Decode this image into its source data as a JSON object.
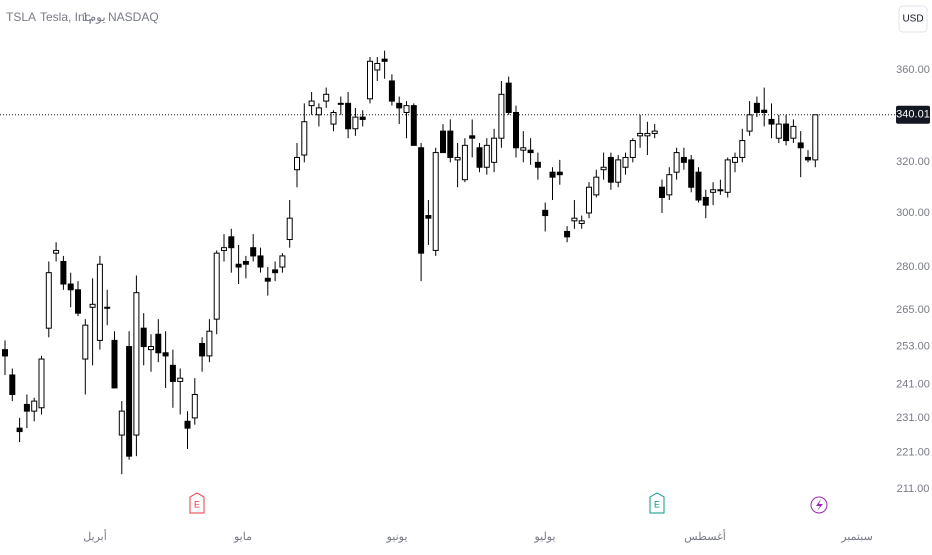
{
  "chart_data": {
    "type": "candlestick",
    "symbol": "TSLA",
    "name": "Tesla, Inc.",
    "interval": "1يوم",
    "exchange": "NASDAQ",
    "currency": "USD",
    "last_price": 340.01,
    "log_scale": true,
    "up_color": "#ffffff",
    "down_color": "#000000",
    "ylim": [
      205.4,
      393.6
    ],
    "yticks": [
      {
        "value": 360,
        "label": "360.00"
      },
      {
        "value": 320,
        "label": "320.00"
      },
      {
        "value": 300,
        "label": "300.00"
      },
      {
        "value": 280,
        "label": "280.00"
      },
      {
        "value": 265,
        "label": "265.00"
      },
      {
        "value": 253,
        "label": "253.00"
      },
      {
        "value": 241,
        "label": "241.00"
      },
      {
        "value": 231,
        "label": "231.00"
      },
      {
        "value": 221,
        "label": "221.00"
      },
      {
        "value": 211,
        "label": "211.00"
      }
    ],
    "x_labels": [
      "أبريل",
      "مايو",
      "يونيو",
      "يوليو",
      "أغسطس",
      "سبتمبر"
    ],
    "event_labels": [
      "E",
      "E"
    ],
    "open": [
      252,
      244,
      228,
      235,
      233,
      234,
      259,
      285,
      282,
      274,
      272,
      249,
      266,
      255,
      266,
      255,
      226,
      253,
      226,
      259,
      252,
      257,
      251,
      247,
      242,
      230,
      231,
      254,
      250,
      262,
      286,
      291,
      281,
      282,
      287,
      284,
      276,
      279,
      280,
      290,
      317,
      323,
      344,
      340,
      346,
      336,
      345,
      345,
      334,
      339,
      347,
      360,
      365,
      355,
      345,
      341,
      344,
      326,
      299,
      286,
      333,
      333,
      321,
      313,
      331,
      326,
      318,
      320,
      330,
      354,
      341,
      325,
      325,
      320,
      301,
      316,
      316,
      293,
      297,
      296,
      300,
      307,
      317,
      322,
      312,
      318,
      322,
      331,
      331,
      332,
      310,
      307,
      316,
      322,
      321,
      316,
      306,
      308,
      309,
      308,
      320,
      322,
      333,
      345,
      342,
      338,
      330,
      336,
      330,
      328,
      322,
      321
    ],
    "high": [
      255,
      246,
      231,
      238,
      237,
      250,
      282,
      289,
      284,
      278,
      275,
      262,
      276,
      284,
      272,
      258,
      236,
      258,
      277,
      264,
      257,
      262,
      258,
      252,
      246,
      233,
      243,
      256,
      262,
      286,
      292,
      294,
      288,
      284,
      292,
      287,
      280,
      282,
      285,
      305,
      328,
      345,
      350,
      345,
      352,
      342,
      348,
      350,
      343,
      342,
      366,
      366,
      369,
      358,
      348,
      346,
      345,
      328,
      305,
      326,
      336,
      338,
      328,
      330,
      338,
      328,
      330,
      334,
      355,
      357,
      344,
      333,
      330,
      324,
      304,
      318,
      321,
      295,
      305,
      299,
      312,
      317,
      324,
      324,
      323,
      324,
      330,
      340,
      337,
      336,
      313,
      318,
      326,
      326,
      323,
      318,
      309,
      312,
      313,
      322,
      324,
      334,
      346,
      348,
      352,
      345,
      340,
      340,
      338,
      333,
      325,
      340
    ],
    "low": [
      244,
      236,
      224,
      228,
      230,
      232,
      256,
      282,
      272,
      266,
      263,
      238,
      247,
      252,
      260,
      240,
      215,
      219,
      220,
      247,
      245,
      248,
      240,
      234,
      232,
      222,
      229,
      245,
      248,
      257,
      282,
      278,
      274,
      276,
      282,
      278,
      270,
      275,
      278,
      287,
      310,
      320,
      340,
      335,
      343,
      333,
      340,
      330,
      331,
      335,
      345,
      355,
      356,
      344,
      336,
      330,
      327,
      275,
      288,
      284,
      324,
      320,
      310,
      312,
      322,
      316,
      315,
      316,
      326,
      340,
      322,
      320,
      319,
      313,
      293,
      305,
      311,
      289,
      294,
      294,
      298,
      306,
      313,
      309,
      310,
      315,
      320,
      326,
      323,
      330,
      300,
      305,
      313,
      317,
      308,
      304,
      298,
      303,
      307,
      306,
      316,
      320,
      331,
      339,
      335,
      330,
      328,
      327,
      328,
      314,
      320,
      318
    ],
    "close": [
      250,
      238,
      227,
      233,
      236,
      249,
      278,
      286,
      274,
      272,
      264,
      260,
      267,
      281,
      266,
      240,
      233,
      220,
      271,
      253,
      253,
      251,
      250,
      242,
      243,
      228,
      238,
      250,
      258,
      285,
      287,
      287,
      280,
      281,
      284,
      280,
      275,
      278,
      284,
      298,
      322,
      337,
      346,
      343,
      349,
      341,
      345,
      334,
      339,
      338,
      364,
      363,
      364,
      346,
      343,
      344,
      327,
      285,
      298,
      324,
      324,
      322,
      322,
      327,
      330,
      318,
      327,
      330,
      349,
      341,
      326,
      326,
      324,
      318,
      299,
      314,
      315,
      291,
      298,
      297,
      310,
      314,
      318,
      312,
      321,
      322,
      329,
      332,
      332,
      333,
      306,
      315,
      324,
      320,
      310,
      305,
      303,
      309,
      309,
      321,
      322,
      329,
      340,
      341,
      341,
      336,
      336,
      329,
      335,
      326,
      321,
      340.01
    ]
  }
}
